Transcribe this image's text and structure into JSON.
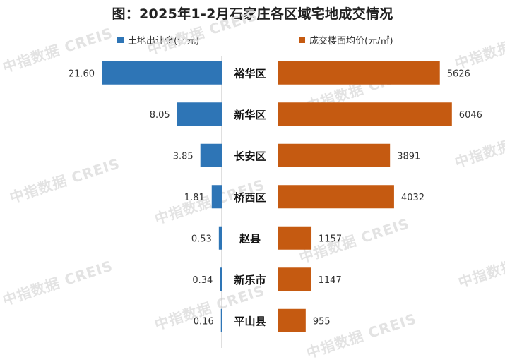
{
  "title": "图：2025年1-2月石家庄各区域宅地成交情况",
  "watermark": "中指数据 CREIS",
  "colors": {
    "left": "#2e75b6",
    "right": "#c55a11",
    "axis": "#bfbfbf",
    "text": "#333333",
    "watermark": "#e3e3e3"
  },
  "chart_data": {
    "type": "bar",
    "orientation": "horizontal-butterfly",
    "categories": [
      "裕华区",
      "新华区",
      "长安区",
      "桥西区",
      "赵县",
      "新乐市",
      "平山县"
    ],
    "series": [
      {
        "name": "土地出让金(亿元)",
        "side": "left",
        "values": [
          21.6,
          8.05,
          3.85,
          1.81,
          0.53,
          0.34,
          0.16
        ],
        "labels": [
          "21.60",
          "8.05",
          "3.85",
          "1.81",
          "0.53",
          "0.34",
          "0.16"
        ]
      },
      {
        "name": "成交楼面均价(元/㎡)",
        "side": "right",
        "values": [
          5626,
          6046,
          3891,
          4032,
          1157,
          1147,
          955
        ],
        "labels": [
          "5626",
          "6046",
          "3891",
          "4032",
          "1157",
          "1147",
          "955"
        ]
      }
    ],
    "xlim_left": [
      0,
      22.5
    ],
    "xlim_right": [
      0,
      6100
    ]
  }
}
